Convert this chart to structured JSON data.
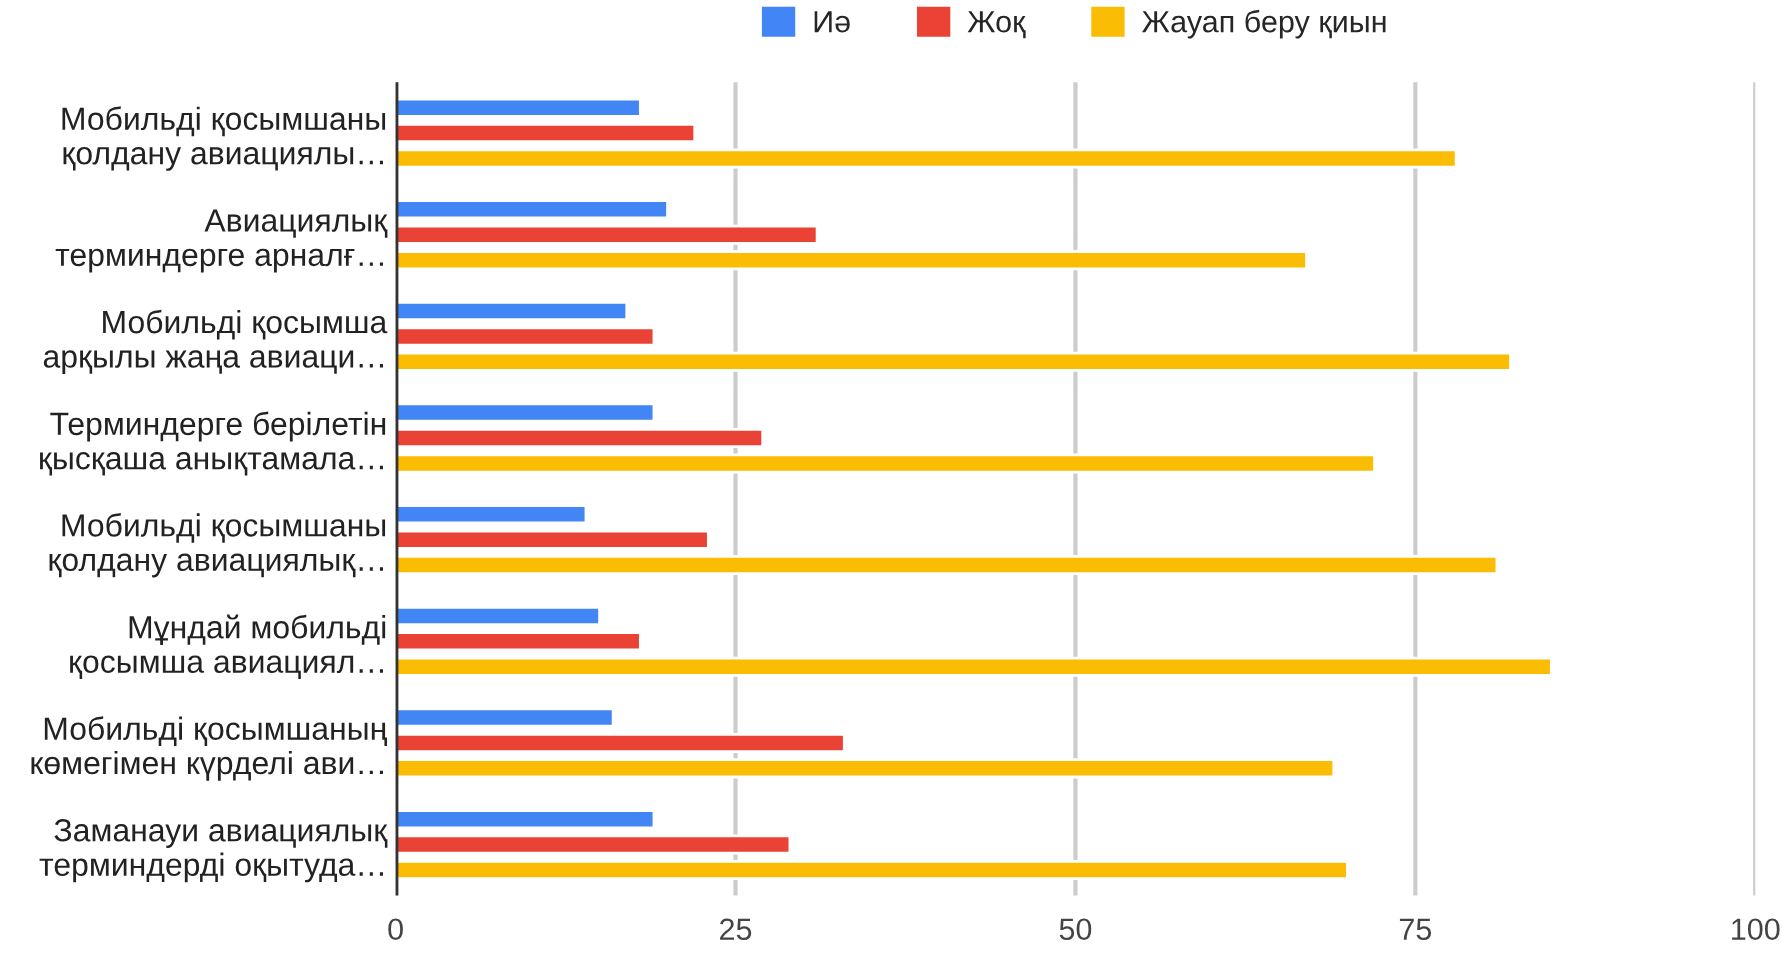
{
  "chart_data": {
    "type": "bar",
    "orientation": "horizontal",
    "categories": [
      "Мобильді қосымшаны\nқолдану авиациялы…",
      "Авиациялық\nтерминдерге арналғ…",
      "Мобильді қосымша\nарқылы жаңа авиаци…",
      "Терминдерге берілетін\nқысқаша анықтамала…",
      "Мобильді қосымшаны\nқолдану авиациялық…",
      "Мұндай мобильді\nқосымша авиациял…",
      "Мобильді қосымшаның\nкөмегімен күрделі ави…",
      "Заманауи авиациялық\nтерминдерді оқытуда…"
    ],
    "series": [
      {
        "name": "Иә",
        "color": "#4285f4",
        "values": [
          18,
          20,
          17,
          19,
          14,
          15,
          16,
          19
        ]
      },
      {
        "name": "Жоқ",
        "color": "#ea4335",
        "values": [
          22,
          31,
          19,
          27,
          23,
          18,
          33,
          29
        ]
      },
      {
        "name": "Жауап беру қиын",
        "color": "#fbbc04",
        "values": [
          78,
          67,
          82,
          72,
          81,
          85,
          69,
          70
        ]
      }
    ],
    "xlim": [
      0,
      100
    ],
    "xticks": [
      0,
      25,
      50,
      75,
      100
    ],
    "grid": "x",
    "legend": "top"
  }
}
